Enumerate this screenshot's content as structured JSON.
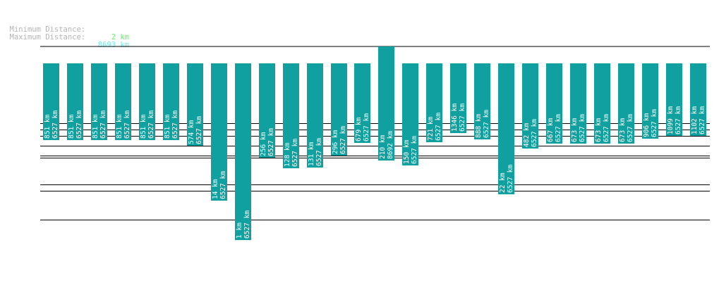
{
  "summary": {
    "min_label": "Minimum Distance:",
    "min_value": "2 km",
    "max_label": "Maximum Distance:",
    "max_value": "8693 km"
  },
  "colors": {
    "bar": "#10a0a0",
    "grid": "#000000",
    "label_text": "#ffffff",
    "summary_label": "#b4b4b4",
    "min_value": "#66ee66",
    "max_value": "#66eeee"
  },
  "chart_data": {
    "type": "bar",
    "title": "",
    "xlabel": "",
    "ylabel": "",
    "bars": [
      {
        "top": 0,
        "value": 851,
        "label1": "851 km",
        "label2": "6527 km"
      },
      {
        "top": 0,
        "value": 851,
        "label1": "851 km",
        "label2": "6527 km"
      },
      {
        "top": 0,
        "value": 851,
        "label1": "851 km",
        "label2": "6527 km"
      },
      {
        "top": 0,
        "value": 851,
        "label1": "851 km",
        "label2": "6527 km"
      },
      {
        "top": 0,
        "value": 851,
        "label1": "851 km",
        "label2": "6527 km"
      },
      {
        "top": 0,
        "value": 851,
        "label1": "851 km",
        "label2": "6527 km"
      },
      {
        "top": 0,
        "value": 574,
        "label1": "574 km",
        "label2": "6527 km"
      },
      {
        "top": 0,
        "value": 14,
        "label1": "14 km",
        "label2": "6527 km"
      },
      {
        "top": 0,
        "value": 1,
        "label1": "1 km",
        "label2": "6527 km"
      },
      {
        "top": 0,
        "value": 256,
        "label1": "256 km",
        "label2": "6527 km"
      },
      {
        "top": 0,
        "value": 128,
        "label1": "128 km",
        "label2": "6527 km"
      },
      {
        "top": 0,
        "value": 131,
        "label1": "131 km",
        "label2": "6527 km"
      },
      {
        "top": 0,
        "value": 296,
        "label1": "296 km",
        "label2": "6527 km"
      },
      {
        "top": 0,
        "value": 679,
        "label1": "679 km",
        "label2": "6527 km"
      },
      {
        "top": 1,
        "value": 210,
        "label1": "210 km",
        "label2": "8692 km"
      },
      {
        "top": 0,
        "value": 150,
        "label1": "150 km",
        "label2": "6527 km"
      },
      {
        "top": 0,
        "value": 721,
        "label1": "721 km",
        "label2": "6527 km"
      },
      {
        "top": 0,
        "value": 1346,
        "label1": "1346 km",
        "label2": "6527 km"
      },
      {
        "top": 0,
        "value": 888,
        "label1": "888 km",
        "label2": "6527 km"
      },
      {
        "top": 0,
        "value": 22,
        "label1": "22 km",
        "label2": "6527 km"
      },
      {
        "top": 0,
        "value": 482,
        "label1": "482 km",
        "label2": "6527 km"
      },
      {
        "top": 0,
        "value": 667,
        "label1": "667 km",
        "label2": "6527 km"
      },
      {
        "top": 0,
        "value": 673,
        "label1": "673 km",
        "label2": "6527 km"
      },
      {
        "top": 0,
        "value": 673,
        "label1": "673 km",
        "label2": "6527 km"
      },
      {
        "top": 0,
        "value": 673,
        "label1": "673 km",
        "label2": "6527 km"
      },
      {
        "top": 0,
        "value": 906,
        "label1": "906 km",
        "label2": "6527 km"
      },
      {
        "top": 0,
        "value": 1099,
        "label1": "1099 km",
        "label2": "6527 km"
      },
      {
        "top": 0,
        "value": 1102,
        "label1": "1102 km",
        "label2": "6527 km"
      }
    ],
    "reference_lines": [
      8693,
      1346,
      888,
      574,
      296,
      150,
      131,
      22,
      14,
      2
    ]
  }
}
